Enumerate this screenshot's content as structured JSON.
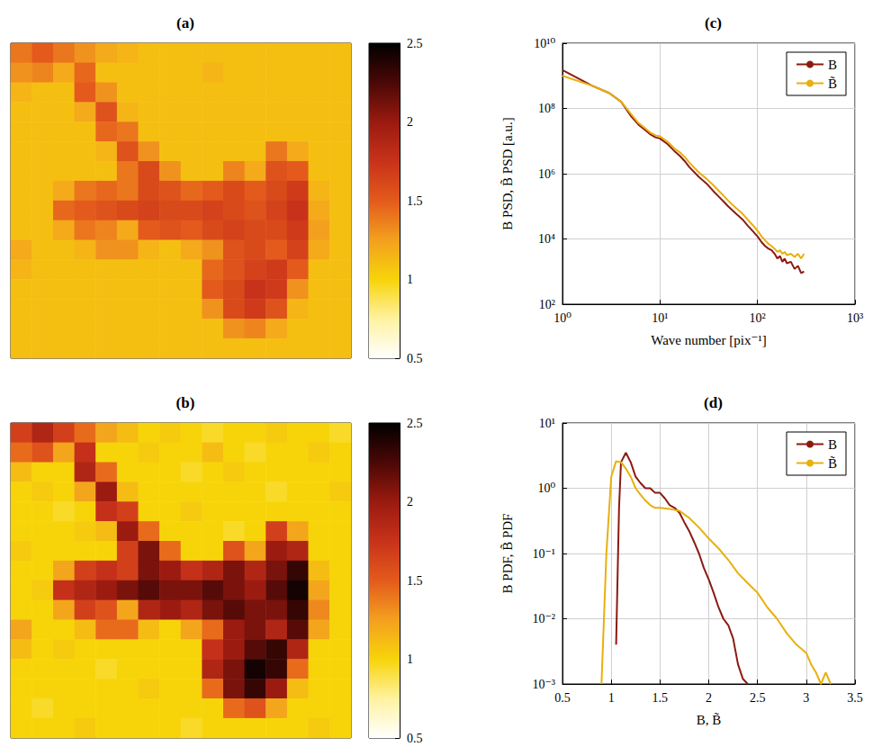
{
  "chart_data": [
    {
      "type": "heatmap",
      "title": "(a)",
      "tick_labels": false,
      "colorbar": {
        "range": [
          0.5,
          2.5
        ],
        "ticks": [
          0.5,
          1,
          1.5,
          2,
          2.5
        ]
      },
      "cells": [
        [
          1.4,
          1.5,
          1.4,
          1.3,
          1.2,
          1.15,
          1.1,
          1.1,
          1.1,
          1.1,
          1.1,
          1.1,
          1.1,
          1.1,
          1.1,
          1.1
        ],
        [
          1.3,
          1.35,
          1.2,
          1.45,
          1.1,
          1.1,
          1.1,
          1.1,
          1.1,
          1.15,
          1.1,
          1.1,
          1.1,
          1.1,
          1.1,
          1.1
        ],
        [
          1.15,
          1.1,
          1.1,
          1.5,
          1.3,
          1.1,
          1.1,
          1.1,
          1.1,
          1.1,
          1.1,
          1.1,
          1.1,
          1.1,
          1.1,
          1.1
        ],
        [
          1.1,
          1.1,
          1.1,
          1.2,
          1.55,
          1.15,
          1.1,
          1.1,
          1.1,
          1.1,
          1.1,
          1.1,
          1.1,
          1.1,
          1.1,
          1.1
        ],
        [
          1.1,
          1.1,
          1.1,
          1.1,
          1.45,
          1.4,
          1.1,
          1.1,
          1.1,
          1.1,
          1.1,
          1.1,
          1.1,
          1.1,
          1.1,
          1.1
        ],
        [
          1.1,
          1.1,
          1.1,
          1.1,
          1.15,
          1.55,
          1.3,
          1.1,
          1.1,
          1.1,
          1.1,
          1.1,
          1.4,
          1.2,
          1.1,
          1.1
        ],
        [
          1.1,
          1.1,
          1.1,
          1.1,
          1.1,
          1.4,
          1.6,
          1.3,
          1.1,
          1.1,
          1.35,
          1.2,
          1.55,
          1.5,
          1.1,
          1.1
        ],
        [
          1.1,
          1.1,
          1.2,
          1.4,
          1.45,
          1.4,
          1.6,
          1.55,
          1.45,
          1.5,
          1.6,
          1.5,
          1.6,
          1.7,
          1.15,
          1.1
        ],
        [
          1.1,
          1.1,
          1.45,
          1.5,
          1.55,
          1.6,
          1.65,
          1.6,
          1.6,
          1.65,
          1.6,
          1.55,
          1.65,
          1.75,
          1.2,
          1.1
        ],
        [
          1.1,
          1.1,
          1.2,
          1.4,
          1.35,
          1.2,
          1.5,
          1.55,
          1.5,
          1.6,
          1.65,
          1.6,
          1.6,
          1.7,
          1.25,
          1.1
        ],
        [
          1.2,
          1.1,
          1.1,
          1.15,
          1.3,
          1.3,
          1.15,
          1.1,
          1.2,
          1.3,
          1.55,
          1.6,
          1.5,
          1.65,
          1.2,
          1.1
        ],
        [
          1.15,
          1.1,
          1.1,
          1.1,
          1.1,
          1.1,
          1.1,
          1.1,
          1.1,
          1.45,
          1.55,
          1.65,
          1.7,
          1.5,
          1.1,
          1.1
        ],
        [
          1.1,
          1.1,
          1.1,
          1.1,
          1.1,
          1.1,
          1.1,
          1.1,
          1.1,
          1.5,
          1.6,
          1.75,
          1.7,
          1.3,
          1.1,
          1.1
        ],
        [
          1.1,
          1.1,
          1.1,
          1.1,
          1.1,
          1.1,
          1.1,
          1.1,
          1.1,
          1.3,
          1.6,
          1.7,
          1.55,
          1.15,
          1.1,
          1.1
        ],
        [
          1.1,
          1.1,
          1.1,
          1.1,
          1.1,
          1.1,
          1.1,
          1.1,
          1.1,
          1.1,
          1.3,
          1.35,
          1.2,
          1.1,
          1.1,
          1.1
        ],
        [
          1.1,
          1.1,
          1.1,
          1.1,
          1.1,
          1.1,
          1.1,
          1.1,
          1.1,
          1.1,
          1.1,
          1.1,
          1.1,
          1.1,
          1.1,
          1.1
        ]
      ]
    },
    {
      "type": "heatmap",
      "title": "(b)",
      "tick_labels": false,
      "colorbar": {
        "range": [
          0.5,
          2.5
        ],
        "ticks": [
          0.5,
          1,
          1.5,
          2,
          2.5
        ]
      },
      "cells": [
        [
          1.66,
          1.88,
          1.66,
          1.44,
          1.22,
          1.11,
          1.0,
          1.05,
          1.0,
          0.95,
          1.0,
          1.0,
          1.05,
          1.0,
          1.0,
          0.95
        ],
        [
          1.44,
          1.55,
          1.22,
          1.77,
          1.0,
          1.0,
          1.05,
          1.0,
          1.0,
          1.11,
          1.0,
          0.95,
          1.0,
          1.0,
          1.05,
          1.0
        ],
        [
          1.11,
          1.0,
          1.0,
          1.88,
          1.44,
          1.0,
          1.0,
          1.0,
          0.95,
          1.0,
          1.05,
          1.0,
          1.0,
          1.0,
          1.0,
          1.0
        ],
        [
          1.0,
          1.05,
          1.0,
          1.22,
          1.99,
          1.11,
          1.0,
          1.0,
          1.0,
          1.0,
          1.0,
          1.0,
          0.95,
          1.0,
          1.0,
          1.05
        ],
        [
          1.0,
          1.0,
          0.95,
          1.0,
          1.77,
          1.66,
          1.0,
          1.0,
          1.05,
          1.0,
          1.0,
          1.0,
          1.0,
          1.0,
          1.0,
          1.0
        ],
        [
          1.0,
          1.0,
          1.0,
          1.05,
          1.11,
          1.99,
          1.44,
          1.0,
          1.0,
          1.0,
          0.95,
          1.0,
          1.66,
          1.22,
          1.0,
          1.0
        ],
        [
          1.05,
          1.0,
          1.0,
          1.0,
          1.0,
          1.66,
          2.1,
          1.44,
          1.0,
          1.0,
          1.55,
          1.22,
          1.99,
          1.88,
          1.0,
          1.0
        ],
        [
          1.0,
          1.0,
          1.22,
          1.66,
          1.77,
          1.66,
          2.1,
          1.99,
          1.77,
          1.88,
          2.1,
          1.88,
          2.1,
          2.32,
          1.11,
          1.0
        ],
        [
          1.0,
          1.05,
          1.77,
          1.88,
          1.99,
          2.1,
          2.21,
          2.1,
          2.1,
          2.21,
          2.1,
          1.99,
          2.21,
          2.43,
          1.22,
          1.0
        ],
        [
          1.0,
          1.0,
          1.22,
          1.66,
          1.55,
          1.22,
          1.88,
          1.99,
          1.88,
          2.1,
          2.21,
          2.1,
          2.1,
          2.32,
          1.33,
          1.0
        ],
        [
          1.22,
          1.0,
          1.0,
          1.11,
          1.44,
          1.44,
          1.11,
          1.0,
          1.22,
          1.44,
          1.99,
          2.1,
          1.88,
          2.21,
          1.22,
          1.0
        ],
        [
          1.11,
          1.0,
          1.05,
          1.0,
          1.0,
          1.0,
          1.0,
          1.0,
          1.0,
          1.77,
          1.99,
          2.21,
          2.32,
          1.88,
          1.0,
          1.0
        ],
        [
          1.0,
          1.0,
          1.0,
          1.0,
          0.95,
          1.0,
          1.0,
          1.0,
          1.0,
          1.88,
          2.1,
          2.43,
          2.32,
          1.44,
          1.0,
          1.0
        ],
        [
          1.0,
          1.0,
          1.0,
          1.0,
          1.0,
          1.0,
          1.05,
          1.0,
          1.0,
          1.44,
          2.1,
          2.32,
          1.99,
          1.11,
          1.0,
          1.0
        ],
        [
          1.0,
          0.95,
          1.0,
          1.0,
          1.0,
          1.0,
          1.0,
          1.0,
          1.0,
          1.0,
          1.44,
          1.55,
          1.22,
          1.0,
          1.0,
          1.0
        ],
        [
          1.0,
          1.0,
          1.0,
          1.05,
          1.0,
          1.0,
          1.0,
          1.0,
          0.95,
          1.0,
          1.0,
          1.0,
          1.0,
          1.0,
          1.05,
          1.0
        ]
      ]
    },
    {
      "type": "line",
      "title": "(c)",
      "x_label": "Wave number [pix⁻¹]",
      "y_label": "B PSD, B̃ PSD [a.u.]",
      "log": true,
      "grid": true,
      "legend": "upper right",
      "xlim": [
        1,
        1000
      ],
      "xticks": [
        {
          "value": 1,
          "label": "10⁰"
        },
        {
          "value": 10,
          "label": "10¹"
        },
        {
          "value": 100,
          "label": "10²"
        },
        {
          "value": 1000,
          "label": "10³"
        }
      ],
      "ylim": [
        100,
        10000000000
      ],
      "yticks": [
        {
          "value": 100,
          "label": "10²"
        },
        {
          "value": 10000,
          "label": "10⁴"
        },
        {
          "value": 1000000,
          "label": "10⁶"
        },
        {
          "value": 100000000,
          "label": "10⁸"
        },
        {
          "value": 10000000000,
          "label": "10¹⁰"
        }
      ],
      "x": [
        1,
        2,
        3,
        4,
        5,
        6,
        7,
        8,
        9,
        10,
        12,
        14,
        16,
        18,
        20,
        25,
        30,
        35,
        40,
        45,
        50,
        60,
        70,
        80,
        90,
        100,
        110,
        120,
        130,
        140,
        150,
        160,
        170,
        180,
        190,
        200,
        220,
        240,
        260,
        280,
        300
      ],
      "series": [
        {
          "name": "B",
          "color": "#8b1a12",
          "values": [
            1500000000,
            500000000,
            300000000,
            160000000,
            60000000,
            32000000,
            22000000,
            16000000,
            13000000,
            12000000,
            8000000,
            5000000,
            3500000,
            2400000,
            1600000,
            800000,
            500000,
            300000,
            200000,
            140000,
            100000,
            60000,
            40000,
            25000,
            17000,
            12000,
            8000,
            6000,
            5000,
            4500,
            3500,
            2500,
            3000,
            2000,
            2500,
            1800,
            2000,
            1200,
            1500,
            900,
            1000
          ]
        },
        {
          "name": "B̃",
          "color": "#e8b00e",
          "values": [
            1000000000,
            500000000,
            300000000,
            160000000,
            70000000,
            36000000,
            25000000,
            18000000,
            15000000,
            14000000,
            9500000,
            6000000,
            4500000,
            3200000,
            2200000,
            1100000,
            700000,
            450000,
            300000,
            210000,
            150000,
            90000,
            60000,
            38000,
            26000,
            18000,
            12000,
            9000,
            7000,
            6000,
            5000,
            4000,
            4500,
            3500,
            4000,
            3200,
            3500,
            2800,
            3500,
            2500,
            3500
          ]
        }
      ]
    },
    {
      "type": "line",
      "title": "(d)",
      "x_label": "B, B̃",
      "y_label": "B PDF, B̃ PDF",
      "log": "y",
      "grid": true,
      "legend": "upper right",
      "xlim": [
        0.5,
        3.5
      ],
      "xticks": [
        0.5,
        1,
        1.5,
        2,
        2.5,
        3,
        3.5
      ],
      "ylim": [
        0.001,
        10
      ],
      "yticks": [
        {
          "value": 0.001,
          "label": "10⁻³"
        },
        {
          "value": 0.01,
          "label": "10⁻²"
        },
        {
          "value": 0.1,
          "label": "10⁻¹"
        },
        {
          "value": 1,
          "label": "10⁰"
        },
        {
          "value": 10,
          "label": "10¹"
        }
      ],
      "series": [
        {
          "name": "B",
          "color": "#8b1a12",
          "x": [
            1.05,
            1.08,
            1.1,
            1.15,
            1.2,
            1.25,
            1.3,
            1.35,
            1.4,
            1.45,
            1.5,
            1.55,
            1.6,
            1.65,
            1.7,
            1.75,
            1.8,
            1.85,
            1.9,
            1.95,
            2.0,
            2.05,
            2.1,
            2.15,
            2.2,
            2.25,
            2.3,
            2.35,
            2.4
          ],
          "values": [
            0.004,
            0.5,
            2.5,
            3.5,
            2.5,
            1.5,
            1.2,
            1.0,
            1.0,
            0.85,
            0.85,
            0.7,
            0.55,
            0.5,
            0.42,
            0.3,
            0.22,
            0.15,
            0.1,
            0.06,
            0.04,
            0.025,
            0.015,
            0.01,
            0.008,
            0.005,
            0.002,
            0.0012,
            0.001
          ]
        },
        {
          "name": "B̃",
          "color": "#e8b00e",
          "x": [
            0.9,
            0.95,
            1.0,
            1.05,
            1.1,
            1.15,
            1.2,
            1.25,
            1.3,
            1.35,
            1.4,
            1.45,
            1.5,
            1.6,
            1.7,
            1.8,
            1.9,
            2.0,
            2.1,
            2.2,
            2.3,
            2.4,
            2.5,
            2.6,
            2.7,
            2.8,
            2.9,
            3.0,
            3.05,
            3.1,
            3.15,
            3.2,
            3.25
          ],
          "values": [
            0.001,
            0.1,
            1.5,
            2.6,
            2.5,
            2.0,
            1.5,
            1.0,
            0.8,
            0.65,
            0.55,
            0.5,
            0.5,
            0.48,
            0.45,
            0.35,
            0.25,
            0.17,
            0.12,
            0.08,
            0.05,
            0.035,
            0.025,
            0.015,
            0.01,
            0.006,
            0.004,
            0.003,
            0.002,
            0.0015,
            0.001,
            0.0015,
            0.001
          ]
        }
      ]
    }
  ]
}
